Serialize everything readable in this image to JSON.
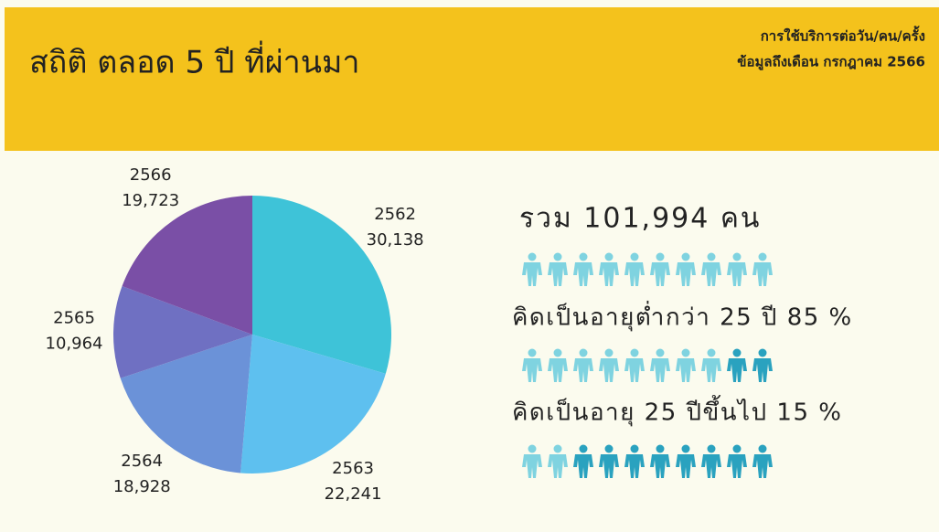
{
  "header": {
    "title": "สถิติ ตลอด 5 ปี ที่ผ่านมา",
    "subtitle_lines": [
      "การใช้บริการต่อวัน/คน/ครั้ง",
      "ข้อมูลถึงเดือน กรกฎาคม 2566"
    ]
  },
  "chart_data": {
    "type": "pie",
    "categories": [
      "2562",
      "2563",
      "2564",
      "2565",
      "2566"
    ],
    "values": [
      30138,
      22241,
      18928,
      10964,
      19723
    ],
    "value_labels": [
      "30,138",
      "22,241",
      "18,928",
      "10,964",
      "19,723"
    ],
    "colors": [
      "#3ec3d8",
      "#5ec0ef",
      "#6b92d8",
      "#6f70c2",
      "#7a4fa6"
    ]
  },
  "summary": {
    "lines": [
      "รวม 101,994 คน",
      "คิดเป็นอายุต่ำกว่า 25 ปี 85 %",
      "คิดเป็นอายุ 25 ปีขึ้นไป 15 %"
    ]
  }
}
